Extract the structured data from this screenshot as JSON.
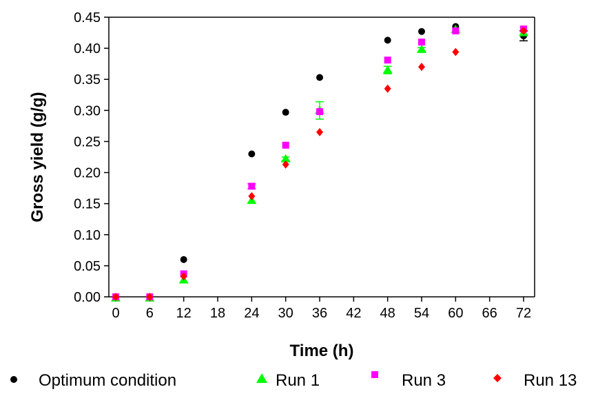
{
  "chart_data": {
    "type": "scatter",
    "xlabel": "Time (h)",
    "ylabel": "Gross yield (g/g)",
    "xlim": [
      0,
      75
    ],
    "ylim": [
      0,
      0.45
    ],
    "xticks": [
      0,
      6,
      12,
      18,
      24,
      30,
      36,
      42,
      48,
      54,
      60,
      66,
      72
    ],
    "yticks": [
      "0.00",
      "0.05",
      "0.10",
      "0.15",
      "0.20",
      "0.25",
      "0.30",
      "0.35",
      "0.40",
      "0.45"
    ],
    "grid": false,
    "legend_position": "bottom",
    "series": [
      {
        "name": "Optimum condition",
        "marker": "circle",
        "color": "#000000",
        "x": [
          0,
          6,
          12,
          24,
          30,
          36,
          48,
          54,
          60,
          72
        ],
        "y": [
          0.0,
          0.0,
          0.06,
          0.23,
          0.297,
          0.353,
          0.413,
          0.427,
          0.435,
          0.42
        ],
        "err": [
          0,
          0,
          0,
          0,
          0,
          0,
          0,
          0,
          0,
          0.008
        ]
      },
      {
        "name": "Run 1",
        "marker": "triangle",
        "color": "#00ff00",
        "x": [
          0,
          6,
          12,
          24,
          30,
          36,
          48,
          54,
          60,
          72
        ],
        "y": [
          -0.002,
          -0.002,
          0.027,
          0.155,
          0.222,
          0.3,
          0.365,
          0.398,
          0.43,
          0.425
        ],
        "err": [
          0,
          0,
          0,
          0,
          0.003,
          0.014,
          0.006,
          0.003,
          0,
          0
        ]
      },
      {
        "name": "Run 3",
        "marker": "square",
        "color": "#ff00ff",
        "x": [
          0,
          6,
          12,
          24,
          30,
          36,
          48,
          54,
          60,
          72
        ],
        "y": [
          0.0,
          0.0,
          0.037,
          0.178,
          0.244,
          0.298,
          0.381,
          0.41,
          0.428,
          0.431
        ],
        "err": [
          0,
          0,
          0,
          0.004,
          0,
          0,
          0,
          0,
          0,
          0
        ]
      },
      {
        "name": "Run 13",
        "marker": "diamond",
        "color": "#ff0000",
        "x": [
          0,
          6,
          12,
          24,
          30,
          36,
          48,
          54,
          60,
          72
        ],
        "y": [
          0.0,
          0.0,
          0.033,
          0.162,
          0.213,
          0.265,
          0.335,
          0.37,
          0.394,
          0.428
        ],
        "err": [
          0,
          0,
          0,
          0,
          0,
          0,
          0,
          0,
          0,
          0
        ]
      }
    ]
  }
}
